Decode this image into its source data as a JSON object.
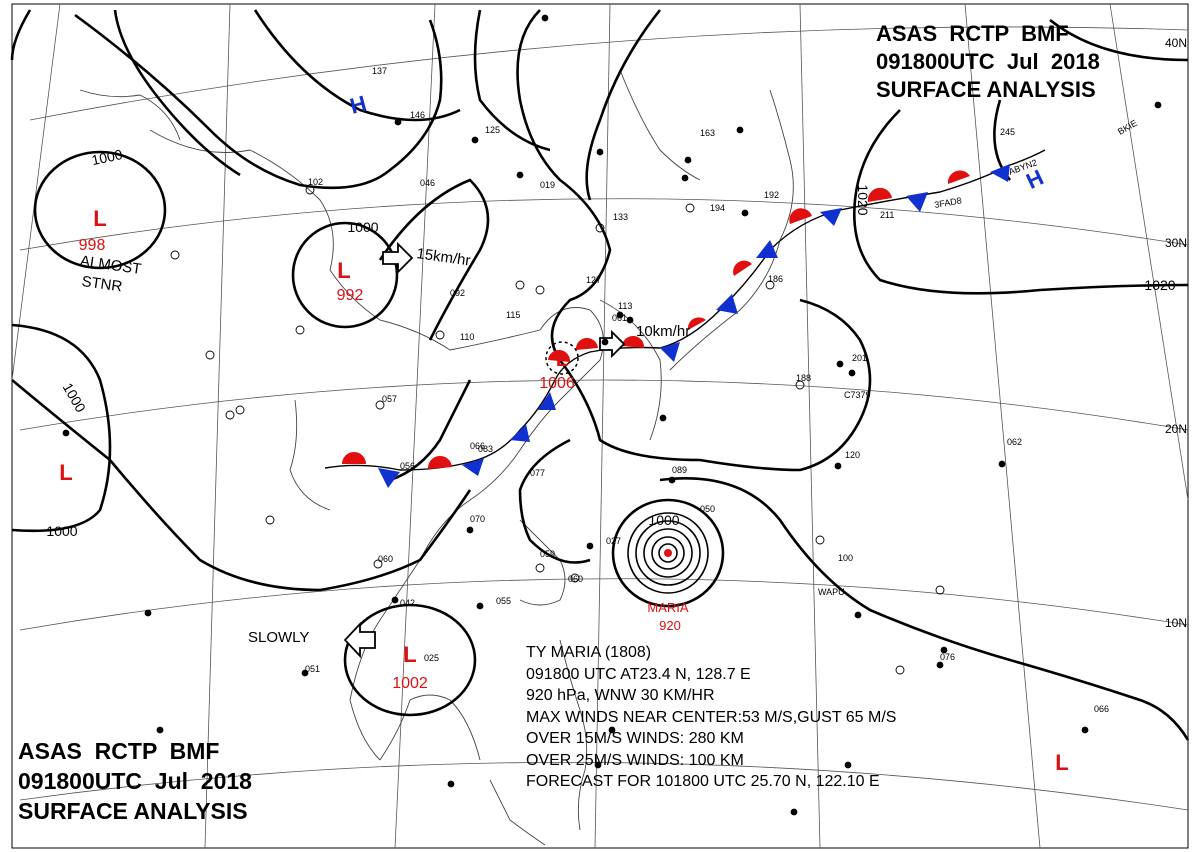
{
  "header_top": {
    "line1": "ASAS  RCTP  BMF",
    "line2": "091800UTC  Jul  2018",
    "line3": "SURFACE ANALYSIS"
  },
  "header_bottom": {
    "line1": "ASAS  RCTP  BMF",
    "line2": "091800UTC  Jul  2018",
    "line3": "SURFACE ANALYSIS"
  },
  "latitude_labels": [
    "40N",
    "30N",
    "20N",
    "10N"
  ],
  "colors": {
    "low": "#dd1111",
    "high": "#1133cc",
    "warm_front": "#e01010",
    "cold_front": "#1030d0",
    "isobar": "#000000"
  },
  "pressure_systems": [
    {
      "type": "L",
      "value": "998",
      "note": "ALMOST\nSTNR"
    },
    {
      "type": "L",
      "value": "992",
      "motion": "15km/hr"
    },
    {
      "type": "L",
      "value": "1006",
      "motion": "10km/hr"
    },
    {
      "type": "L",
      "value": "1002",
      "motion": "SLOWLY"
    },
    {
      "type": "L",
      "value": ""
    },
    {
      "type": "L",
      "value": ""
    },
    {
      "type": "H",
      "value": ""
    },
    {
      "type": "H",
      "value": ""
    }
  ],
  "isobar_labels": [
    "1000",
    "1000",
    "1000",
    "1000",
    "1020",
    "1020",
    "1000"
  ],
  "typhoon": {
    "name": "MARIA",
    "pressure": "920",
    "info_lines": [
      "TY  MARIA  (1808)",
      "091800 UTC  AT23.4 N, 128.7 E",
      "920 hPa, WNW  30 KM/HR",
      "MAX WINDS NEAR CENTER:53 M/S,GUST 65 M/S",
      "OVER 15M/S WINDS: 280 KM",
      "OVER 25M/S WINDS: 100 KM",
      "FORECAST FOR 101800 UTC 25.70 N, 122.10 E"
    ]
  },
  "station_labels": [
    "137",
    "146",
    "125",
    "163",
    "194",
    "046",
    "102",
    "092",
    "057",
    "066",
    "056",
    "070",
    "077",
    "089",
    "083",
    "060",
    "042",
    "025",
    "051",
    "055",
    "059",
    "060",
    "050",
    "027",
    "120",
    "100",
    "076",
    "066",
    "062",
    "110",
    "127",
    "115",
    "113",
    "186",
    "188",
    "201",
    "245",
    "211",
    "192",
    "019",
    "133",
    "061"
  ],
  "ship_labels": [
    "C7379",
    "ABYN2",
    "3FAD8",
    "BKIE",
    "WAPU"
  ]
}
